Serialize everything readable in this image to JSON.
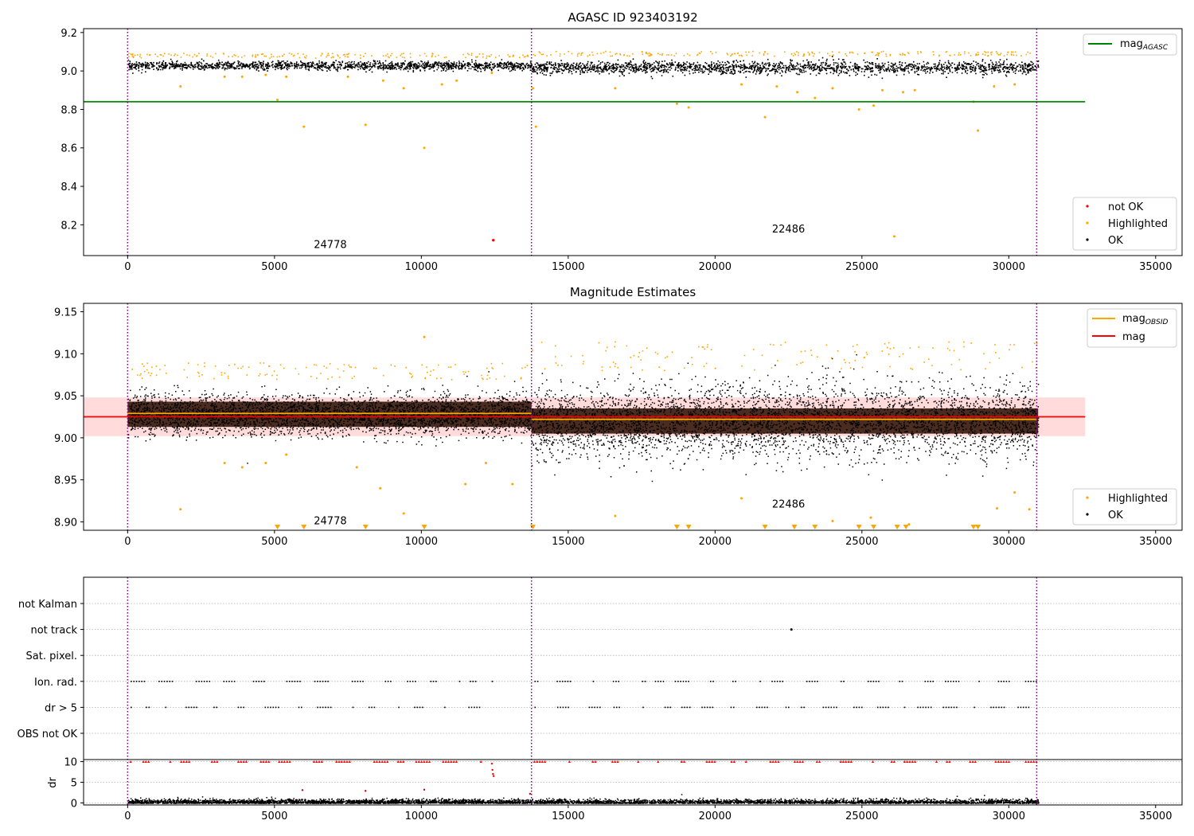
{
  "chart_data": [
    {
      "type": "scatter",
      "title": "AGASC ID 923403192",
      "xlim": [
        -1500,
        35900
      ],
      "ylim": [
        8.04,
        9.22
      ],
      "xticks": [
        0,
        5000,
        10000,
        15000,
        20000,
        25000,
        30000,
        35000
      ],
      "xtick_labels": [
        "0",
        "5000",
        "10000",
        "15000",
        "20000",
        "25000",
        "30000",
        "35000"
      ],
      "yticks": [
        8.2,
        8.4,
        8.6,
        8.8,
        9.0,
        9.2
      ],
      "ytick_labels": [
        "8.2",
        "8.4",
        "8.6",
        "8.8",
        "9.0",
        "9.2"
      ],
      "obsid_boundaries": [
        0,
        13750,
        30950
      ],
      "obsid_labels": [
        {
          "text": "24778",
          "x": 6900,
          "y": 8.08
        },
        {
          "text": "22486",
          "x": 22500,
          "y": 8.16
        }
      ],
      "mag_agasc": {
        "label": "mag",
        "subscript": "AGASC",
        "value": 8.84,
        "x_range": [
          -1500,
          32600
        ],
        "color": "#008000"
      },
      "series": [
        {
          "name": "OK",
          "color": "#000000",
          "segments": [
            {
              "x_range": [
                0,
                13750
              ],
              "center": 9.03,
              "spread": 0.02
            },
            {
              "x_range": [
                13750,
                31000
              ],
              "center": 9.02,
              "spread": 0.03
            }
          ]
        },
        {
          "name": "Highlighted",
          "color": "#ffa500",
          "points": [
            [
              1800,
              8.92
            ],
            [
              3300,
              8.97
            ],
            [
              3900,
              8.97
            ],
            [
              4700,
              8.98
            ],
            [
              5100,
              8.85
            ],
            [
              5400,
              8.97
            ],
            [
              6000,
              8.71
            ],
            [
              7500,
              8.97
            ],
            [
              8100,
              8.72
            ],
            [
              8700,
              8.95
            ],
            [
              9400,
              8.91
            ],
            [
              10100,
              8.6
            ],
            [
              10700,
              8.93
            ],
            [
              11200,
              8.95
            ],
            [
              12400,
              8.99
            ],
            [
              13900,
              8.71
            ],
            [
              13800,
              8.91
            ],
            [
              16600,
              8.91
            ],
            [
              18700,
              8.83
            ],
            [
              19100,
              8.81
            ],
            [
              20900,
              8.93
            ],
            [
              21700,
              8.76
            ],
            [
              22100,
              8.92
            ],
            [
              22800,
              8.89
            ],
            [
              23400,
              8.86
            ],
            [
              24000,
              8.91
            ],
            [
              24900,
              8.8
            ],
            [
              25400,
              8.82
            ],
            [
              25700,
              8.9
            ],
            [
              26100,
              8.14
            ],
            [
              26400,
              8.89
            ],
            [
              26800,
              8.9
            ],
            [
              28800,
              8.84
            ],
            [
              28950,
              8.69
            ],
            [
              29500,
              8.92
            ],
            [
              30200,
              8.93
            ]
          ]
        },
        {
          "name": "not OK",
          "color": "#ff0000",
          "points": [
            [
              12450,
              8.12
            ]
          ]
        }
      ],
      "legend": {
        "upper_right": [
          "mag_AGASC"
        ],
        "lower_right": [
          "not OK",
          "Highlighted",
          "OK"
        ]
      }
    },
    {
      "type": "scatter",
      "title": "Magnitude Estimates",
      "xlim": [
        -1500,
        35900
      ],
      "ylim": [
        8.89,
        9.16
      ],
      "xticks": [
        0,
        5000,
        10000,
        15000,
        20000,
        25000,
        30000,
        35000
      ],
      "xtick_labels": [
        "0",
        "5000",
        "10000",
        "15000",
        "20000",
        "25000",
        "30000",
        "35000"
      ],
      "yticks": [
        8.9,
        8.95,
        9.0,
        9.05,
        9.1,
        9.15
      ],
      "ytick_labels": [
        "8.90",
        "8.95",
        "9.00",
        "9.05",
        "9.10",
        "9.15"
      ],
      "obsid_boundaries": [
        0,
        13750,
        30950
      ],
      "obsid_labels": [
        {
          "text": "24778",
          "x": 6900,
          "y": 8.897
        },
        {
          "text": "22486",
          "x": 22500,
          "y": 8.917
        }
      ],
      "mag": {
        "label": "mag",
        "value": 9.025,
        "band": [
          9.002,
          9.048
        ],
        "x_range": [
          -1500,
          32600
        ],
        "color": "#ff0000"
      },
      "mag_obsid": {
        "label": "mag",
        "subscript": "OBSID",
        "color": "#ffa500",
        "segments": [
          {
            "x_range": [
              0,
              13750
            ],
            "value": 9.029
          },
          {
            "x_range": [
              13750,
              30950
            ],
            "value": 9.022
          }
        ]
      },
      "series": [
        {
          "name": "OK",
          "color": "#000000",
          "segments": [
            {
              "x_range": [
                0,
                13750
              ],
              "center": 9.028,
              "spread": 0.02
            },
            {
              "x_range": [
                13750,
                31000
              ],
              "center": 9.02,
              "spread": 0.035
            }
          ]
        },
        {
          "name": "Highlighted",
          "color": "#ffa500",
          "points": [
            [
              1800,
              8.915
            ],
            [
              3300,
              8.97
            ],
            [
              3900,
              8.965
            ],
            [
              4700,
              8.97
            ],
            [
              5400,
              8.98
            ],
            [
              7800,
              8.965
            ],
            [
              8600,
              8.94
            ],
            [
              9400,
              8.91
            ],
            [
              10100,
              9.12
            ],
            [
              11500,
              8.945
            ],
            [
              12200,
              8.97
            ],
            [
              13100,
              8.945
            ],
            [
              16600,
              8.907
            ],
            [
              20900,
              8.928
            ],
            [
              24000,
              8.901
            ],
            [
              25300,
              8.905
            ],
            [
              26600,
              8.897
            ],
            [
              29600,
              8.916
            ],
            [
              30200,
              8.935
            ],
            [
              30700,
              8.915
            ]
          ]
        },
        {
          "name": "Highlighted (below range)",
          "color": "#ffa500",
          "x": [
            5100,
            6000,
            8100,
            10100,
            13800,
            18700,
            19100,
            21700,
            22700,
            23400,
            24900,
            25400,
            26200,
            26500,
            28800,
            28950
          ]
        }
      ],
      "legend": {
        "upper_right": [
          "mag_OBSID",
          "mag"
        ],
        "lower_right": [
          "Highlighted",
          "OK"
        ]
      }
    },
    {
      "type": "scatter",
      "title": "",
      "xlim": [
        -1500,
        35900
      ],
      "xticks": [
        0,
        5000,
        10000,
        15000,
        20000,
        25000,
        30000,
        35000
      ],
      "xtick_labels": [
        "0",
        "5000",
        "10000",
        "15000",
        "20000",
        "25000",
        "30000",
        "35000"
      ],
      "obsid_boundaries": [
        0,
        13750,
        30950
      ],
      "flag_rows": [
        "not Kalman",
        "not track",
        "Sat. pixel.",
        "Ion. rad.",
        "dr > 5",
        "OBS not OK"
      ],
      "flags": {
        "not track": [
          22600
        ],
        "Ion. rad.": {
          "x_ranges": [
            [
              0,
              12450
            ],
            [
              13750,
              31000
            ]
          ]
        },
        "dr > 5": {
          "x_ranges": [
            [
              0,
              12450
            ],
            [
              13750,
              31000
            ]
          ]
        }
      },
      "dr": {
        "ylabel": "dr",
        "yticks": [
          0,
          5,
          10
        ],
        "ytick_labels": [
          "0",
          "5",
          "10"
        ],
        "ylim": [
          -0.5,
          10.5
        ],
        "clipped_value": 10,
        "clipped_color": "#ff0000",
        "outliers": [
          [
            5950,
            3.1
          ],
          [
            8100,
            2.9
          ],
          [
            10100,
            3.2
          ],
          [
            12400,
            9.5
          ],
          [
            12420,
            8.0
          ],
          [
            12440,
            7.0
          ],
          [
            12460,
            6.5
          ],
          [
            13700,
            2.2
          ]
        ],
        "typical": 0.5,
        "color": "#000000"
      }
    }
  ]
}
